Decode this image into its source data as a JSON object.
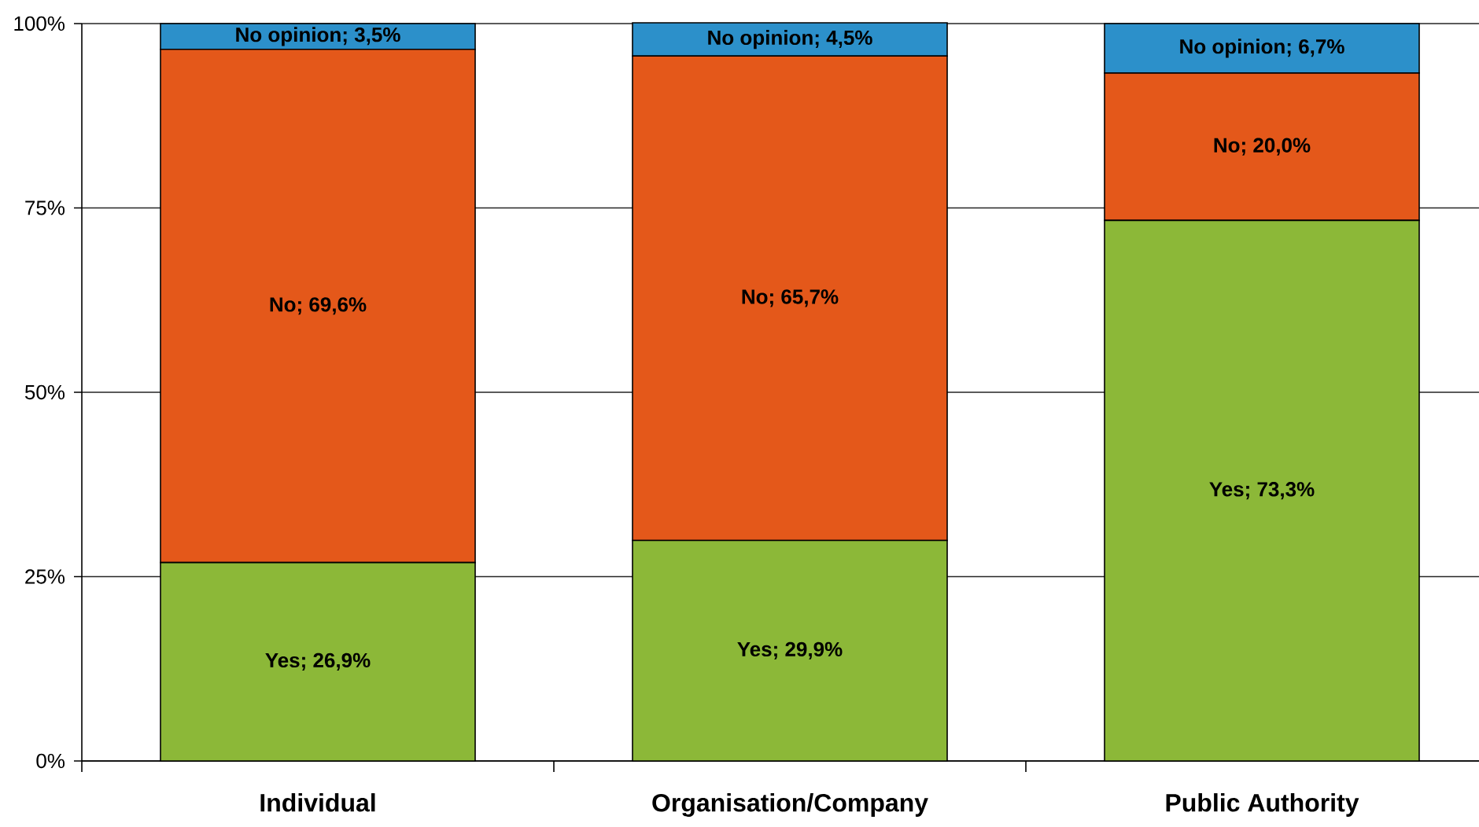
{
  "chart_data": {
    "type": "bar",
    "stacked": true,
    "categories": [
      "Individual",
      "Organisation/Company",
      "Public Authority"
    ],
    "series": [
      {
        "color": "#8cb838",
        "values": [
          26.9,
          29.9,
          73.3
        ],
        "value_labels": [
          "Yes; 26,9%",
          "Yes; 29,9%",
          "Yes; 73,3%"
        ]
      },
      {
        "color": "#e4581a",
        "values": [
          69.6,
          65.7,
          20.0
        ],
        "value_labels": [
          "No; 69,6%",
          "No; 65,7%",
          "No; 20,0%"
        ]
      },
      {
        "color": "#2c90ca",
        "values": [
          3.5,
          4.5,
          6.7
        ],
        "value_labels": [
          "No opinion; 3,5%",
          "No opinion; 4,5%",
          "No opinion; 6,7%"
        ]
      }
    ],
    "ylim": [
      0,
      100
    ],
    "yticks": [
      {
        "value": 0,
        "label": "0%"
      },
      {
        "value": 25,
        "label": "25%"
      },
      {
        "value": 50,
        "label": "50%"
      },
      {
        "value": 75,
        "label": "75%"
      },
      {
        "value": 100,
        "label": "100%"
      }
    ],
    "grid": "y"
  }
}
